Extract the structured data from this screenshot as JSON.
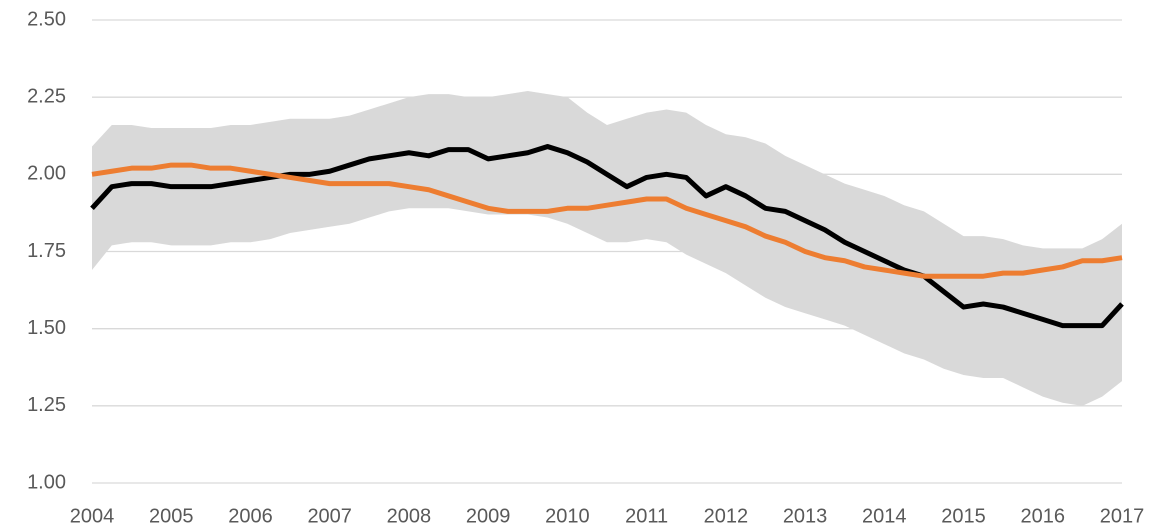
{
  "chart_data": {
    "type": "line",
    "x": [
      2004,
      2004.25,
      2004.5,
      2004.75,
      2005,
      2005.25,
      2005.5,
      2005.75,
      2006,
      2006.25,
      2006.5,
      2006.75,
      2007,
      2007.25,
      2007.5,
      2007.75,
      2008,
      2008.25,
      2008.5,
      2008.75,
      2009,
      2009.25,
      2009.5,
      2009.75,
      2010,
      2010.25,
      2010.5,
      2010.75,
      2011,
      2011.25,
      2011.5,
      2011.75,
      2012,
      2012.25,
      2012.5,
      2012.75,
      2013,
      2013.25,
      2013.5,
      2013.75,
      2014,
      2014.25,
      2014.5,
      2014.75,
      2015,
      2015.25,
      2015.5,
      2015.75,
      2016,
      2016.25,
      2016.5,
      2016.75,
      2017
    ],
    "xlim": [
      2004,
      2017
    ],
    "xticks": [
      2004,
      2005,
      2006,
      2007,
      2008,
      2009,
      2010,
      2011,
      2012,
      2013,
      2014,
      2015,
      2016,
      2017
    ],
    "ylim": [
      1.0,
      2.5
    ],
    "yticks": [
      {
        "value": 1.0,
        "label": "1.00"
      },
      {
        "value": 1.25,
        "label": "1.25"
      },
      {
        "value": 1.5,
        "label": "1.50"
      },
      {
        "value": 1.75,
        "label": "1.75"
      },
      {
        "value": 2.0,
        "label": "2.00"
      },
      {
        "value": 2.25,
        "label": "2.25"
      },
      {
        "value": 2.5,
        "label": "2.50"
      }
    ],
    "grid": true,
    "band": {
      "color": "#d9d9d9",
      "upper": [
        2.09,
        2.16,
        2.16,
        2.15,
        2.15,
        2.15,
        2.15,
        2.16,
        2.16,
        2.17,
        2.18,
        2.18,
        2.18,
        2.19,
        2.21,
        2.23,
        2.25,
        2.26,
        2.26,
        2.25,
        2.25,
        2.26,
        2.27,
        2.26,
        2.25,
        2.2,
        2.16,
        2.18,
        2.2,
        2.21,
        2.2,
        2.16,
        2.13,
        2.12,
        2.1,
        2.06,
        2.03,
        2.0,
        1.97,
        1.95,
        1.93,
        1.9,
        1.88,
        1.84,
        1.8,
        1.8,
        1.79,
        1.77,
        1.76,
        1.76,
        1.76,
        1.79,
        1.84
      ],
      "lower": [
        1.69,
        1.77,
        1.78,
        1.78,
        1.77,
        1.77,
        1.77,
        1.78,
        1.78,
        1.79,
        1.81,
        1.82,
        1.83,
        1.84,
        1.86,
        1.88,
        1.89,
        1.89,
        1.89,
        1.88,
        1.87,
        1.87,
        1.87,
        1.86,
        1.84,
        1.81,
        1.78,
        1.78,
        1.79,
        1.78,
        1.74,
        1.71,
        1.68,
        1.64,
        1.6,
        1.57,
        1.55,
        1.53,
        1.51,
        1.48,
        1.45,
        1.42,
        1.4,
        1.37,
        1.35,
        1.34,
        1.34,
        1.31,
        1.28,
        1.26,
        1.25,
        1.28,
        1.33
      ]
    },
    "series": [
      {
        "color": "#000000",
        "values": [
          1.89,
          1.96,
          1.97,
          1.97,
          1.96,
          1.96,
          1.96,
          1.97,
          1.98,
          1.99,
          2.0,
          2.0,
          2.01,
          2.03,
          2.05,
          2.06,
          2.07,
          2.06,
          2.08,
          2.08,
          2.05,
          2.06,
          2.07,
          2.09,
          2.07,
          2.04,
          2.0,
          1.96,
          1.99,
          2.0,
          1.99,
          1.93,
          1.96,
          1.93,
          1.89,
          1.88,
          1.85,
          1.82,
          1.78,
          1.75,
          1.72,
          1.69,
          1.67,
          1.62,
          1.57,
          1.58,
          1.57,
          1.55,
          1.53,
          1.51,
          1.51,
          1.51,
          1.58
        ]
      },
      {
        "color": "#ed7d31",
        "values": [
          2.0,
          2.01,
          2.02,
          2.02,
          2.03,
          2.03,
          2.02,
          2.02,
          2.01,
          2.0,
          1.99,
          1.98,
          1.97,
          1.97,
          1.97,
          1.97,
          1.96,
          1.95,
          1.93,
          1.91,
          1.89,
          1.88,
          1.88,
          1.88,
          1.89,
          1.89,
          1.9,
          1.91,
          1.92,
          1.92,
          1.89,
          1.87,
          1.85,
          1.83,
          1.8,
          1.78,
          1.75,
          1.73,
          1.72,
          1.7,
          1.69,
          1.68,
          1.67,
          1.67,
          1.67,
          1.67,
          1.68,
          1.68,
          1.69,
          1.7,
          1.72,
          1.72,
          1.73
        ]
      }
    ]
  }
}
